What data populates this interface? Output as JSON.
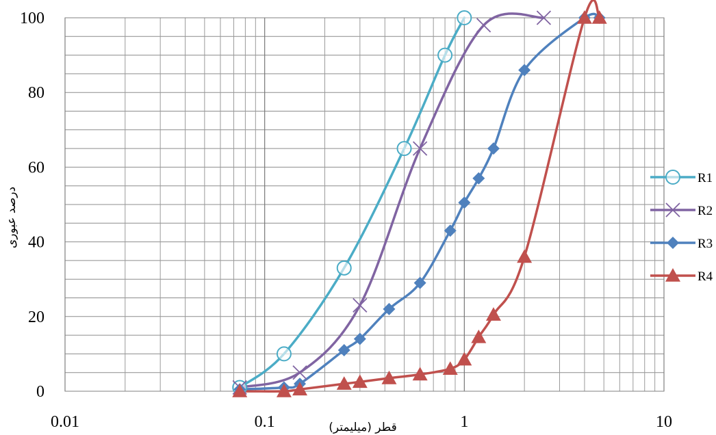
{
  "chart_data": {
    "type": "line",
    "xscale": "log",
    "xlim": [
      0.01,
      10
    ],
    "ylim": [
      0,
      100
    ],
    "xlabel": "قطر (میلیمتر)",
    "ylabel": "درصد عبوری",
    "title": "",
    "grid": true,
    "legend_position": "right",
    "xticks": [
      "0.01",
      "0.1",
      "1",
      "10"
    ],
    "yticks": [
      "0",
      "20",
      "40",
      "60",
      "80",
      "100"
    ],
    "series": [
      {
        "name": "R1",
        "color": "#4bacc6",
        "marker": "circle-open",
        "points": [
          [
            0.075,
            1
          ],
          [
            0.125,
            10
          ],
          [
            0.25,
            33
          ],
          [
            0.5,
            65
          ],
          [
            0.8,
            90
          ],
          [
            1.0,
            100
          ]
        ]
      },
      {
        "name": "R2",
        "color": "#8064a2",
        "marker": "x",
        "points": [
          [
            0.075,
            1
          ],
          [
            0.15,
            5
          ],
          [
            0.3,
            23
          ],
          [
            0.6,
            65
          ],
          [
            1.25,
            98
          ],
          [
            2.5,
            100
          ]
        ]
      },
      {
        "name": "R3",
        "color": "#4f81bd",
        "marker": "diamond",
        "points": [
          [
            0.075,
            0.5
          ],
          [
            0.125,
            1
          ],
          [
            0.15,
            2
          ],
          [
            0.25,
            11
          ],
          [
            0.3,
            14
          ],
          [
            0.42,
            22
          ],
          [
            0.6,
            29
          ],
          [
            0.85,
            43
          ],
          [
            1.0,
            50.5
          ],
          [
            1.18,
            57
          ],
          [
            1.4,
            65
          ],
          [
            2.0,
            86
          ],
          [
            4.0,
            100
          ],
          [
            4.75,
            100
          ]
        ]
      },
      {
        "name": "R4",
        "color": "#c0504d",
        "marker": "triangle",
        "points": [
          [
            0.075,
            0
          ],
          [
            0.125,
            0
          ],
          [
            0.15,
            0.5
          ],
          [
            0.25,
            2
          ],
          [
            0.3,
            2.5
          ],
          [
            0.42,
            3.5
          ],
          [
            0.6,
            4.5
          ],
          [
            0.85,
            6
          ],
          [
            1.0,
            8.5
          ],
          [
            1.18,
            14.5
          ],
          [
            1.4,
            20.5
          ],
          [
            2.0,
            36
          ],
          [
            4.0,
            100
          ],
          [
            4.75,
            100
          ]
        ]
      }
    ]
  }
}
